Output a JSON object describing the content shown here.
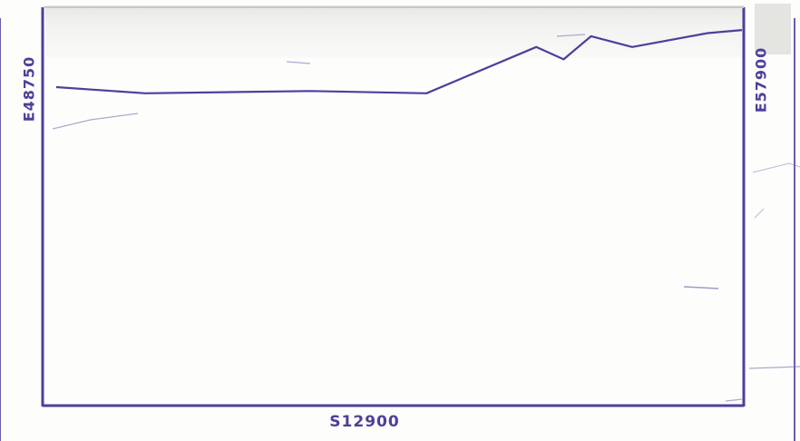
{
  "labels": {
    "left": "E48750",
    "right": "E57900",
    "bottom": "S12900"
  },
  "colors": {
    "ink": "#4e3f9a",
    "paper": "#fdfdfc"
  },
  "profile": {
    "description_type": "line",
    "points": [
      [
        0.0,
        0.0
      ],
      [
        0.13,
        -0.4
      ],
      [
        0.37,
        -0.25
      ],
      [
        0.54,
        -0.4
      ],
      [
        0.7,
        2.6
      ],
      [
        0.74,
        1.8
      ],
      [
        0.78,
        3.3
      ],
      [
        0.84,
        2.6
      ],
      [
        0.95,
        3.5
      ],
      [
        1.0,
        3.7
      ]
    ]
  }
}
